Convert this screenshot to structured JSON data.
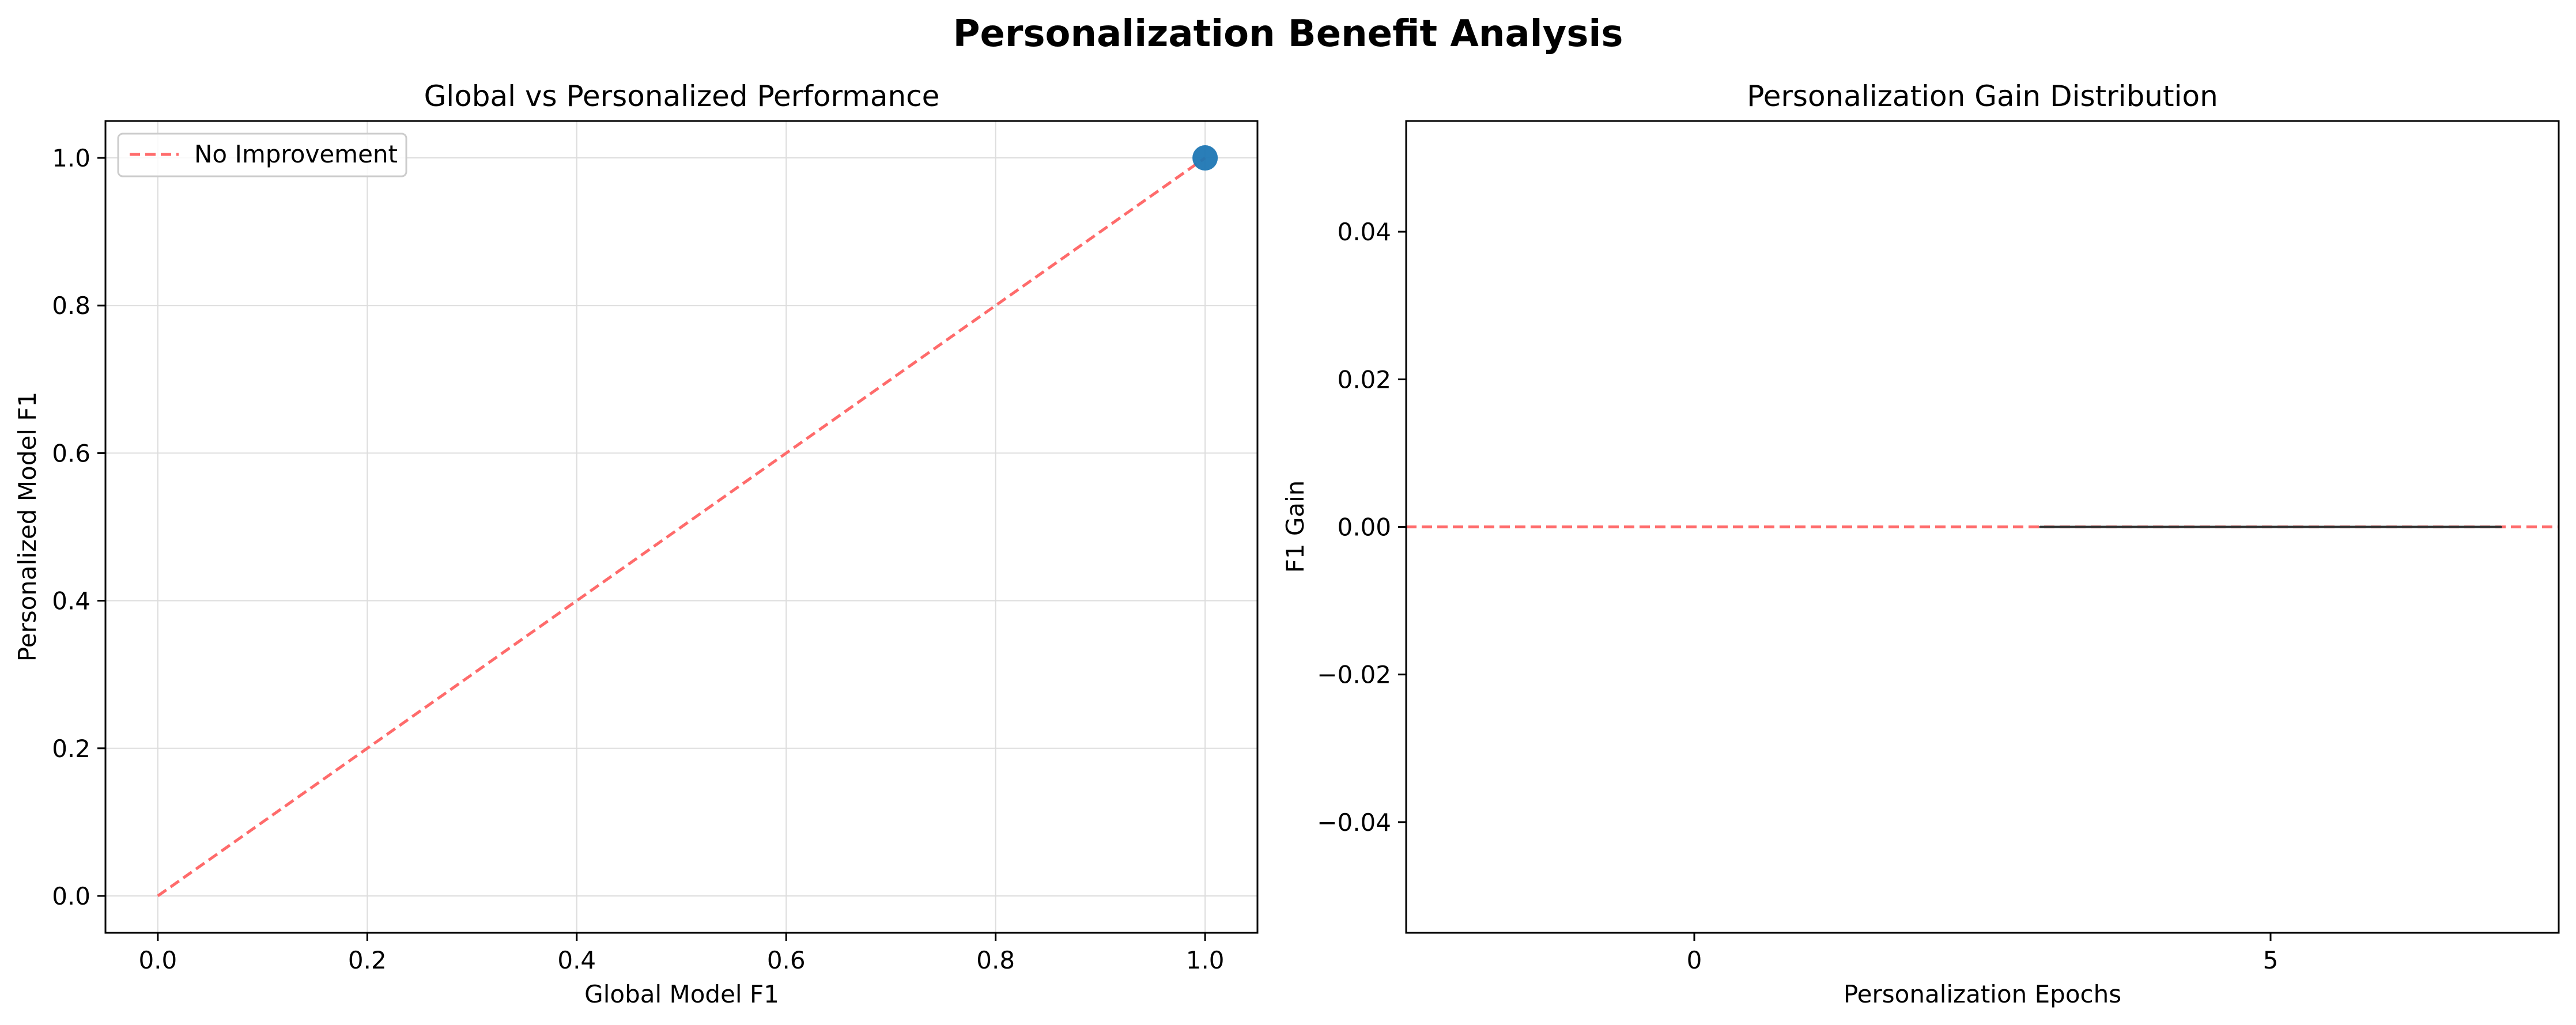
{
  "figure": {
    "title": "Personalization Benefit Analysis"
  },
  "colors": {
    "point": "#1f77b4",
    "reference_line": "#ff6b6b",
    "grid": "#dddddd",
    "axis": "#000000",
    "median_line": "#333333"
  },
  "chart_data": [
    {
      "type": "scatter",
      "title": "Global vs Personalized Performance",
      "xlabel": "Global Model F1",
      "ylabel": "Personalized Model F1",
      "xlim": [
        -0.05,
        1.05
      ],
      "ylim": [
        -0.05,
        1.05
      ],
      "xticks": [
        0.0,
        0.2,
        0.4,
        0.6,
        0.8,
        1.0
      ],
      "yticks": [
        0.0,
        0.2,
        0.4,
        0.6,
        0.8,
        1.0
      ],
      "tick_format": "0.0",
      "grid": true,
      "points": [
        {
          "x": 1.0,
          "y": 1.0
        }
      ],
      "reference_line": {
        "name": "No Improvement",
        "x": [
          0.0,
          1.0
        ],
        "y": [
          0.0,
          1.0
        ],
        "style": "dashed"
      },
      "legend": {
        "entries": [
          "No Improvement"
        ],
        "placement": "top-left"
      }
    },
    {
      "type": "box",
      "title": "Personalization Gain Distribution",
      "xlabel": "Personalization Epochs",
      "ylabel": "F1 Gain",
      "categories": [
        "0",
        "5"
      ],
      "ylim": [
        -0.055,
        0.055
      ],
      "yticks": [
        0.04,
        0.02,
        0.0,
        -0.02,
        -0.04
      ],
      "ytick_labels": [
        "0.04",
        "0.02",
        "0.00",
        "−0.02",
        "−0.04"
      ],
      "grid": false,
      "boxes": [
        {
          "category": "5",
          "min": 0.0,
          "q1": 0.0,
          "median": 0.0,
          "q3": 0.0,
          "max": 0.0
        }
      ],
      "reference_line": {
        "y": 0.0,
        "style": "dashed"
      }
    }
  ]
}
